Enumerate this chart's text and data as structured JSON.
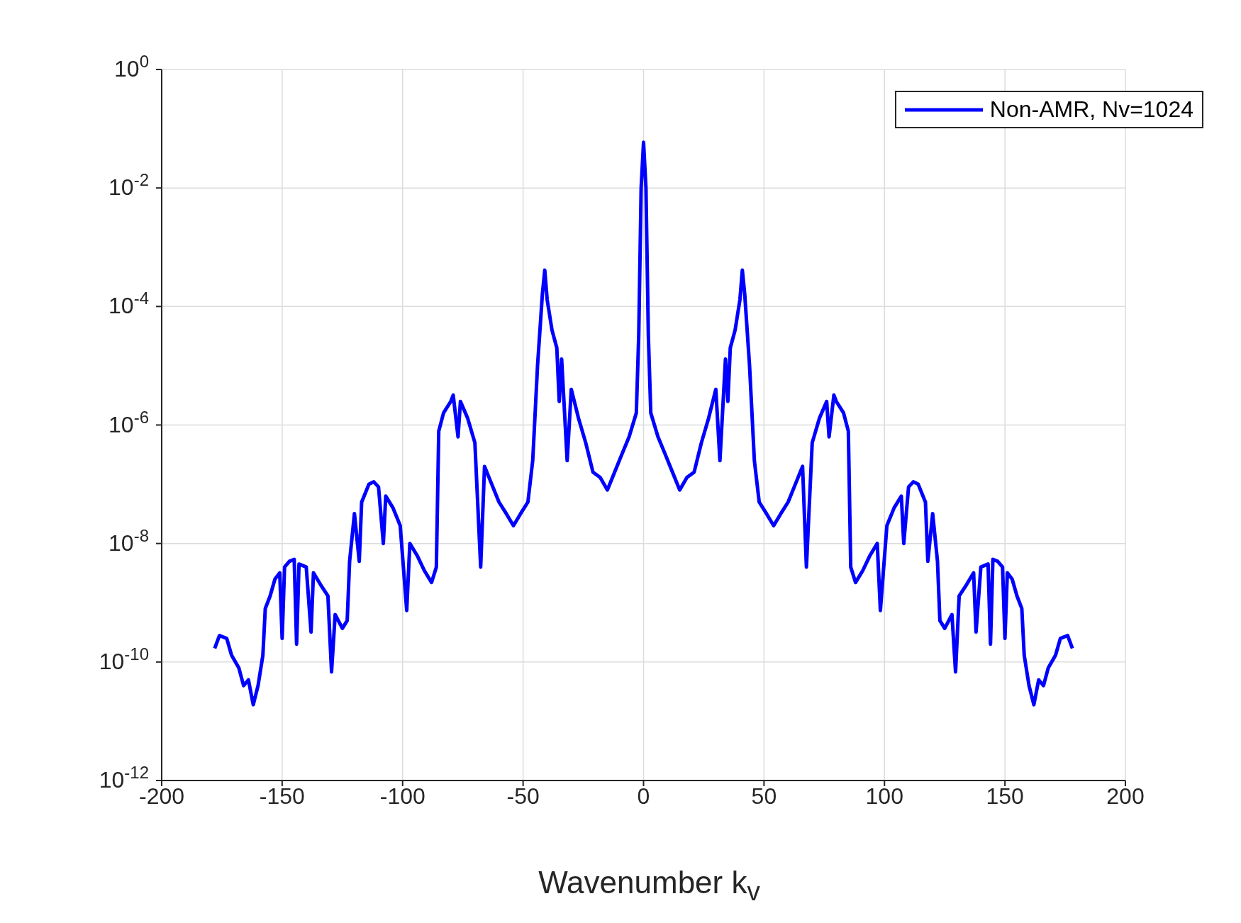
{
  "chart_data": {
    "type": "line",
    "xlabel": "Wavenumber k$_{v}$",
    "x": [
      -178,
      -176,
      -173,
      -171,
      -168,
      -166,
      -164,
      -162,
      -160,
      -158,
      -157,
      -155,
      -153,
      -151,
      -150,
      -149,
      -147,
      -145,
      -144,
      -143,
      -140,
      -138,
      -137,
      -134,
      -131,
      -129.5,
      -128,
      -125,
      -123,
      -122,
      -120,
      -118,
      -117,
      -114,
      -112,
      -110,
      -108,
      -107,
      -104,
      -101,
      -98.3,
      -97,
      -94,
      -91,
      -88,
      -86,
      -85,
      -83,
      -80,
      -79,
      -77,
      -76,
      -73,
      -70,
      -67.6,
      -66,
      -63,
      -60,
      -57,
      -54,
      -51,
      -48,
      -46,
      -44,
      -42,
      -41,
      -40,
      -38,
      -36,
      -35,
      -34,
      -31.7,
      -30,
      -27,
      -24,
      -21,
      -18,
      -15,
      -12,
      -9,
      -6,
      -3,
      -2,
      -1,
      0,
      1,
      2,
      3,
      6,
      9,
      12,
      15,
      18,
      21,
      24,
      27,
      30,
      31.7,
      34,
      35,
      36,
      38,
      40,
      41,
      42,
      44,
      46,
      48,
      51,
      54,
      57,
      60,
      63,
      66,
      67.6,
      70,
      73,
      76,
      77,
      79,
      80,
      83,
      85,
      86,
      88,
      91,
      94,
      97,
      98.3,
      101,
      104,
      107,
      108,
      110,
      112,
      114,
      117,
      118,
      120,
      122,
      123,
      125,
      128,
      129.5,
      131,
      134,
      137,
      138,
      140,
      143,
      144,
      145,
      147,
      149,
      150,
      151,
      153,
      155,
      157,
      158,
      160,
      162,
      164,
      166,
      168,
      171,
      173,
      176,
      178
    ],
    "series": [
      {
        "name": "Non-AMR, Nv=1024",
        "color": "#0000ff",
        "values": [
          1.7e-10,
          2.8e-10,
          2.5e-10,
          1.3e-10,
          8e-11,
          4e-11,
          5e-11,
          1.9e-11,
          4e-11,
          1.3e-10,
          8e-10,
          1.3e-09,
          2.5e-09,
          3.2e-09,
          2.5e-10,
          4e-09,
          5e-09,
          5.4e-09,
          2e-10,
          4.5e-09,
          4e-09,
          3.2e-10,
          3.2e-09,
          2e-09,
          1.3e-09,
          6.8e-11,
          6.3e-10,
          3.7e-10,
          5e-10,
          5e-09,
          3.2e-08,
          5e-09,
          5e-08,
          1e-07,
          1.1e-07,
          9e-08,
          1e-08,
          6.3e-08,
          4e-08,
          2e-08,
          7.4e-10,
          1e-08,
          6.3e-09,
          3.5e-09,
          2.2e-09,
          4e-09,
          7.9e-07,
          1.6e-06,
          2.5e-06,
          3.2e-06,
          6.3e-07,
          2.5e-06,
          1.3e-06,
          5e-07,
          4e-09,
          2e-07,
          1e-07,
          5e-08,
          3.2e-08,
          2e-08,
          3.2e-08,
          5e-08,
          2.5e-07,
          1e-05,
          0.00016,
          0.00041,
          0.00013,
          4e-05,
          2e-05,
          2.5e-06,
          1.3e-05,
          2.5e-07,
          4e-06,
          1.3e-06,
          5e-07,
          1.6e-07,
          1.3e-07,
          8e-08,
          1.6e-07,
          3.2e-07,
          6.3e-07,
          1.6e-06,
          3.2e-05,
          0.01,
          0.059,
          0.01,
          3.2e-05,
          1.6e-06,
          6.3e-07,
          3.2e-07,
          1.6e-07,
          8e-08,
          1.3e-07,
          1.6e-07,
          5e-07,
          1.3e-06,
          4e-06,
          2.5e-07,
          1.3e-05,
          2.5e-06,
          2e-05,
          4e-05,
          0.00013,
          0.00041,
          0.00016,
          1e-05,
          2.5e-07,
          5e-08,
          3.2e-08,
          2e-08,
          3.2e-08,
          5e-08,
          1e-07,
          2e-07,
          4e-09,
          5e-07,
          1.3e-06,
          2.5e-06,
          6.3e-07,
          3.2e-06,
          2.5e-06,
          1.6e-06,
          7.9e-07,
          4e-09,
          2.2e-09,
          3.5e-09,
          6.3e-09,
          1e-08,
          7.4e-10,
          2e-08,
          4e-08,
          6.3e-08,
          1e-08,
          9e-08,
          1.1e-07,
          1e-07,
          5e-08,
          5e-09,
          3.2e-08,
          5e-09,
          5e-10,
          3.7e-10,
          6.3e-10,
          6.8e-11,
          1.3e-09,
          2e-09,
          3.2e-09,
          3.2e-10,
          4e-09,
          4.5e-09,
          2e-10,
          5.4e-09,
          5e-09,
          4e-09,
          2.5e-10,
          3.2e-09,
          2.5e-09,
          1.3e-09,
          8e-10,
          1.3e-10,
          4e-11,
          1.9e-11,
          5e-11,
          4e-11,
          8e-11,
          1.3e-10,
          2.5e-10,
          2.8e-10,
          1.7e-10
        ]
      }
    ],
    "xlim": [
      -200,
      200
    ],
    "xticks": [
      -200,
      -150,
      -100,
      -50,
      0,
      50,
      100,
      150,
      200
    ],
    "log": true,
    "ylim": [
      1e-12,
      1
    ],
    "yticks": [
      {
        "value": 1e-12,
        "label": "10$^{-12}$"
      },
      {
        "value": 1e-10,
        "label": "10$^{-10}$"
      },
      {
        "value": 1e-08,
        "label": "10$^{-8}$"
      },
      {
        "value": 1e-06,
        "label": "10$^{-6}$"
      },
      {
        "value": 0.0001,
        "label": "10$^{-4}$"
      },
      {
        "value": 0.01,
        "label": "10$^{-2}$"
      },
      {
        "value": 1,
        "label": "10$^{0}$"
      }
    ],
    "grid": true,
    "legend": "top right",
    "line_style": "solid"
  }
}
